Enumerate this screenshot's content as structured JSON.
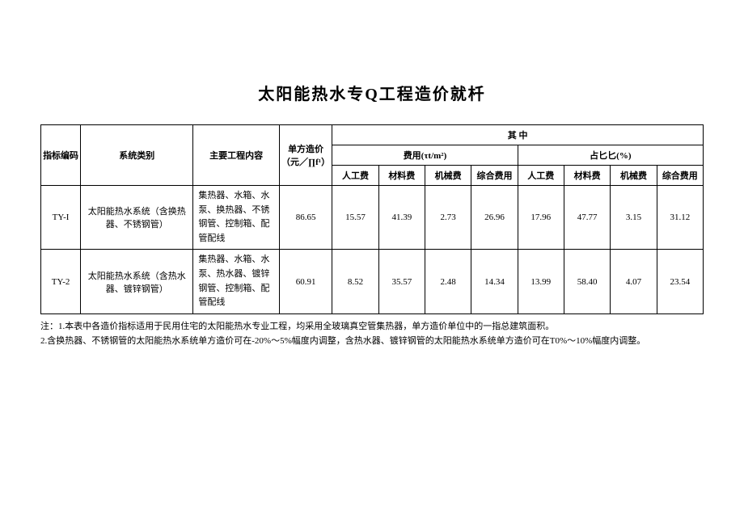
{
  "title": "太阳能热水专Q工程造价就杄",
  "headers": {
    "code": "指标编码",
    "system": "系统类别",
    "content": "主要工程内容",
    "unit_price": "单方造价\n（元／∏f¹）",
    "among": "其       中",
    "fee_group": "费用(τt/m²)",
    "ratio_group": "占匕匕(%)",
    "labor": "人工费",
    "material": "材料费",
    "machine": "机械费",
    "comprehensive": "综合费用"
  },
  "rows": [
    {
      "code": "TY-I",
      "system": "太阳能热水系统（含换热器、不锈钢管）",
      "content": "集热器、水箱、水泵、换热器、不锈钢管、控制箱、配管配线",
      "unit_price": "86.65",
      "fee": [
        "15.57",
        "41.39",
        "2.73",
        "26.96"
      ],
      "ratio": [
        "17.96",
        "47.77",
        "3.15",
        "31.12"
      ]
    },
    {
      "code": "TY-2",
      "system": "太阳能热水系统（含热水器、镀锌钢管）",
      "content": "集热器、水箱、水泵、热水器、镀锌钢管、控制箱、配管配线",
      "unit_price": "60.91",
      "fee": [
        "8.52",
        "35.57",
        "2.48",
        "14.34"
      ],
      "ratio": [
        "13.99",
        "58.40",
        "4.07",
        "23.54"
      ]
    }
  ],
  "notes": [
    "注：1.本表中各造价指标适用于民用住宅的太阳能热水专业工程，均采用全玻璃真空管集热器，单方造价单位中的一指总建筑面积。",
    "2.含换热器、不锈钢管的太阳能热水系统单方造价可在-20%～5%幅度内调整，含热水器、镀锌钢管的太阳能热水系统单方造价可在T0%～10%幅度内调整。"
  ]
}
